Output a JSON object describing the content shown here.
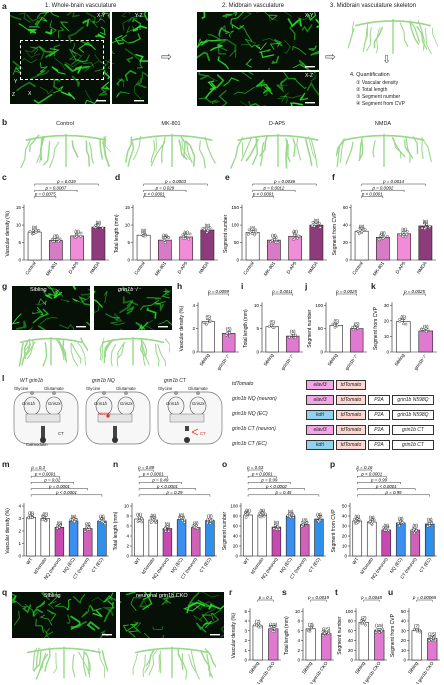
{
  "panel_letters": {
    "a": "a",
    "b": "b",
    "c": "c",
    "d": "d",
    "e": "e",
    "f": "f",
    "g": "g",
    "h": "h",
    "i": "i",
    "j": "j",
    "k": "k",
    "l": "l",
    "m": "m",
    "n": "n",
    "o": "o",
    "p": "p",
    "q": "q",
    "r": "r",
    "s": "s",
    "t": "t",
    "u": "u"
  },
  "panel_a": {
    "title1": "1. Whole-brain vasculature",
    "title2": "2. Midbrain vasculature",
    "title3": "3. Midbrain vasculature skeleton",
    "xy": "X-Y",
    "yz": "Y-Z",
    "xy2": "X-Y",
    "xz": "X-Z",
    "axis_y": "Y",
    "axis_x": "X",
    "axis_z": "Z",
    "quant_title": "4. Quantification",
    "quant_items": [
      "① Vascular density",
      "② Total length",
      "③ Segment number",
      "④ Segment from CVP"
    ]
  },
  "panel_b": {
    "labels": [
      "Control",
      "MK-801",
      "D-AP5",
      "NMDA"
    ]
  },
  "panel_g": {
    "labels": [
      "Sibling",
      "grin1b⁻/⁻"
    ]
  },
  "panel_l": {
    "cells": [
      {
        "title": "WT grin1b",
        "glycine": "Glycine",
        "glutamate": "Glutamate",
        "sub1": "Grin1b",
        "sub2": "Grin2x"
      },
      {
        "title": "grin1b NQ",
        "glycine": "Glycine",
        "glutamate": "Glutamate",
        "sub1": "Grin1b",
        "sub2": "Grin2x",
        "mark": "N598Q"
      },
      {
        "title": "grin1b CT",
        "glycine": "Glycine",
        "glutamate": "Glutamate",
        "sub1": "Grin1b",
        "sub2": "Grin2x",
        "mark": "CT"
      }
    ],
    "camk_label": "Calmodulin",
    "ct_label": "CT",
    "constructs": [
      {
        "name": "tdTomato",
        "promoter": "elavl3",
        "parts": [
          "tdTomato"
        ]
      },
      {
        "name": "grin1b NQ (neuron)",
        "promoter": "elavl3",
        "parts": [
          "tdTomato",
          "P2A",
          "grin1b N598Q"
        ]
      },
      {
        "name": "grin1b NQ (EC)",
        "promoter": "kdrl",
        "parts": [
          "tdTomato",
          "P2A",
          "grin1b N598Q"
        ]
      },
      {
        "name": "grin1b CT (neuron)",
        "promoter": "elavl3",
        "parts": [
          "tdTomato",
          "P2A",
          "grin1b CT"
        ]
      },
      {
        "name": "grin1b CT (EC)",
        "promoter": "kdrl",
        "parts": [
          "tdTomato",
          "P2A",
          "grin1b CT"
        ]
      }
    ]
  },
  "panel_q": {
    "labels": [
      "Sibling",
      "neuronal grin1b CKO"
    ]
  },
  "colors": {
    "control": "#ffffff",
    "mk801": "#d77bc6",
    "dap5": "#f08cd8",
    "nmda": "#8e3b7c",
    "sibling": "#ffffff",
    "mutant": "#e07ad0",
    "tdtomato": "#ffffff",
    "nq_neuron": "#c74ab0",
    "nq_ec": "#3b8ff0",
    "ct_neuron": "#d060b8",
    "ct_ec": "#2e90e8",
    "vessel": "#2ee62e",
    "skeleton": "#98d889",
    "promoter_pink": "#f3a5e6",
    "promoter_blue": "#8fd3ef",
    "red": "#d93024"
  },
  "chart_data": [
    {
      "id": "c",
      "type": "bar",
      "ylabel": "Vascular density (%)",
      "ylim": [
        0,
        15
      ],
      "yticks": [
        0,
        5,
        10,
        15
      ],
      "categories": [
        "Control",
        "MK-801",
        "D-AP5",
        "NMDA"
      ],
      "values": [
        8.0,
        5.6,
        6.9,
        9.4
      ],
      "n": [
        "(8)",
        "(8)",
        "(8)",
        "(8)"
      ],
      "colors": [
        "#ffffff",
        "#d77bc6",
        "#f08cd8",
        "#8e3b7c"
      ],
      "pvals": [
        "p = 0.019",
        "p = 0.0007",
        "p = 0.0075"
      ]
    },
    {
      "id": "d",
      "type": "bar",
      "ylabel": "Total length (mm)",
      "ylim": [
        0,
        15
      ],
      "yticks": [
        0,
        5,
        10,
        15
      ],
      "categories": [
        "Control",
        "MK-801",
        "D-AP5",
        "NMDA"
      ],
      "values": [
        7.1,
        5.7,
        6.6,
        8.6
      ],
      "n": [
        "(8)",
        "(8)",
        "(8)",
        "(8)"
      ],
      "colors": [
        "#ffffff",
        "#d77bc6",
        "#f08cd8",
        "#8e3b7c"
      ],
      "pvals": [
        "p = 0.0003",
        "p = 0.029",
        "p < 0.0001"
      ]
    },
    {
      "id": "e",
      "type": "bar",
      "ylabel": "Segment number",
      "ylim": [
        0,
        150
      ],
      "yticks": [
        0,
        50,
        100,
        150
      ],
      "categories": [
        "Control",
        "MK-801",
        "D-AP5",
        "NMDA"
      ],
      "values": [
        79,
        57,
        68,
        100
      ],
      "n": [
        "(8)",
        "(8)",
        "(8)",
        "(8)"
      ],
      "colors": [
        "#ffffff",
        "#d77bc6",
        "#f08cd8",
        "#8e3b7c"
      ],
      "pvals": [
        "p = 0.0036",
        "p = 0.0012",
        "p < 0.0001"
      ]
    },
    {
      "id": "f",
      "type": "bar",
      "ylabel": "Segment from CVP",
      "ylim": [
        0,
        60
      ],
      "yticks": [
        0,
        20,
        40,
        60
      ],
      "categories": [
        "Control",
        "MK-801",
        "D-AP5",
        "NMDA"
      ],
      "values": [
        33,
        26,
        30,
        39
      ],
      "n": [
        "(8)",
        "(8)",
        "(8)",
        "(8)"
      ],
      "colors": [
        "#ffffff",
        "#d77bc6",
        "#f08cd8",
        "#8e3b7c"
      ],
      "pvals": [
        "p = 0.0014",
        "p = 0.0092",
        "p < 0.0001"
      ]
    },
    {
      "id": "h",
      "type": "bar",
      "ylabel": "Vascular density (%)",
      "ylim": [
        0,
        4
      ],
      "yticks": [
        0,
        2,
        4
      ],
      "categories": [
        "Sibling",
        "grin1b⁻/⁻"
      ],
      "values": [
        2.6,
        1.6
      ],
      "n": [
        "(5)",
        "(5)"
      ],
      "colors": [
        "#ffffff",
        "#e07ad0"
      ],
      "pvals": [
        "p = 0.0099"
      ]
    },
    {
      "id": "i",
      "type": "bar",
      "ylabel": "Total length (mm)",
      "ylim": [
        0,
        10
      ],
      "yticks": [
        0,
        5,
        10
      ],
      "categories": [
        "Sibling",
        "grin1b⁻/⁻"
      ],
      "values": [
        5.4,
        3.4
      ],
      "n": [
        "(5)",
        "(5)"
      ],
      "colors": [
        "#ffffff",
        "#e07ad0"
      ],
      "pvals": [
        "p = 0.0011"
      ]
    },
    {
      "id": "j",
      "type": "bar",
      "ylabel": "Segment number",
      "ylim": [
        0,
        100
      ],
      "yticks": [
        0,
        50,
        100
      ],
      "categories": [
        "Sibling",
        "grin1b⁻/⁻"
      ],
      "values": [
        57,
        50
      ],
      "n": [
        "(5)",
        "(5)"
      ],
      "colors": [
        "#ffffff",
        "#e07ad0"
      ],
      "pvals": [
        "p = 0.0025"
      ]
    },
    {
      "id": "k",
      "type": "bar",
      "ylabel": "Segment from CVP",
      "ylim": [
        0,
        30
      ],
      "yticks": [
        0,
        10,
        20,
        30
      ],
      "categories": [
        "Sibling",
        "grin1b⁻/⁻"
      ],
      "values": [
        19.5,
        13.5
      ],
      "n": [
        "(5)",
        "(5)"
      ],
      "colors": [
        "#ffffff",
        "#e07ad0"
      ],
      "pvals": [
        "p = 0.0025"
      ]
    },
    {
      "id": "m",
      "type": "bar",
      "ylabel": "Vascular density (%)",
      "ylim": [
        0,
        4
      ],
      "yticks": [
        0,
        1,
        2,
        3,
        4
      ],
      "categories": [
        "WT",
        "tdTomato",
        "NQ (neuron)",
        "NQ (EC)",
        "CT (neuron)",
        "CT (EC)"
      ],
      "values": [
        3.1,
        3.0,
        2.3,
        2.8,
        2.2,
        2.8
      ],
      "n": [
        "(8)",
        "(8)",
        "(8)",
        "(8)",
        "(8)",
        "(8)"
      ],
      "colors": [
        "#ffffff",
        "#ffffff",
        "#c74ab0",
        "#3b8ff0",
        "#d060b8",
        "#2e90e8"
      ],
      "pvals": [
        "p = 0.3",
        "p < 0.0001",
        "p = 0.02",
        "p = 0.0001",
        "p < 0.0001"
      ]
    },
    {
      "id": "n",
      "type": "bar",
      "ylabel": "Total length (mm)",
      "ylim": [
        0,
        10
      ],
      "yticks": [
        0,
        2,
        4,
        6,
        8,
        10
      ],
      "categories": [
        "WT",
        "tdTomato",
        "NQ (neuron)",
        "NQ (EC)",
        "CT (neuron)",
        "CT (EC)"
      ],
      "values": [
        7.4,
        7.2,
        5.5,
        7.3,
        5.7,
        7.1
      ],
      "n": [
        "(8)",
        "(8)",
        "(8)",
        "(8)",
        "(8)",
        "(8)"
      ],
      "colors": [
        "#ffffff",
        "#ffffff",
        "#c74ab0",
        "#3b8ff0",
        "#d060b8",
        "#2e90e8"
      ],
      "pvals": [
        "p = 0.89",
        "p < 0.0001",
        "p = 0.49",
        "p < 0.0001",
        "p = 0.29"
      ]
    },
    {
      "id": "o",
      "type": "bar",
      "ylabel": "Segment number",
      "ylim": [
        0,
        100
      ],
      "yticks": [
        0,
        20,
        40,
        60,
        80,
        100
      ],
      "categories": [
        "WT",
        "tdTomato",
        "NQ (neuron)",
        "NQ (EC)",
        "CT (neuron)",
        "CT (EC)"
      ],
      "values": [
        82,
        82,
        58,
        80,
        63,
        74
      ],
      "n": [
        "(8)",
        "(8)",
        "(8)",
        "(8)",
        "(8)",
        "(8)"
      ],
      "colors": [
        "#ffffff",
        "#ffffff",
        "#c74ab0",
        "#3b8ff0",
        "#d060b8",
        "#2e90e8"
      ],
      "pvals": [
        "p = 0.53",
        "p < 0.0001",
        "p = 0.99",
        "p < 0.0002",
        "p = 0.45"
      ]
    },
    {
      "id": "p",
      "type": "bar",
      "ylabel": "Segment from CVP",
      "ylim": [
        0,
        50
      ],
      "yticks": [
        0,
        10,
        20,
        30,
        40,
        50
      ],
      "categories": [
        "WT",
        "tdTomato",
        "NQ (neuron)",
        "NQ (EC)",
        "CT (neuron)",
        "CT (EC)"
      ],
      "values": [
        35,
        34,
        26,
        33,
        26,
        32
      ],
      "n": [
        "(8)",
        "(8)",
        "(8)",
        "(8)",
        "(8)",
        "(8)"
      ],
      "colors": [
        "#ffffff",
        "#ffffff",
        "#c74ab0",
        "#3b8ff0",
        "#d060b8",
        "#2e90e8"
      ],
      "pvals": [
        "p = 0.16",
        "p < 0.0001",
        "p = 0.99",
        "p < 0.0001",
        "p = 0.99"
      ]
    },
    {
      "id": "r",
      "type": "bar",
      "ylabel": "Vascular density (%)",
      "ylim": [
        0,
        5
      ],
      "yticks": [
        0,
        1,
        2,
        3,
        4,
        5
      ],
      "categories": [
        "Sibling",
        "Neuronal grin1b CKO"
      ],
      "values": [
        3.5,
        3.2
      ],
      "n": [
        "(7)",
        "(15)"
      ],
      "colors": [
        "#ffffff",
        "#e07ad0"
      ],
      "pvals": [
        "p = 0.1"
      ]
    },
    {
      "id": "s",
      "type": "bar",
      "ylabel": "Total length (mm)",
      "ylim": [
        0,
        10
      ],
      "yticks": [
        0,
        2,
        4,
        6,
        8,
        10
      ],
      "categories": [
        "Sibling",
        "Neuronal grin1b CKO"
      ],
      "values": [
        6.4,
        5.4
      ],
      "n": [
        "(7)",
        "(15)"
      ],
      "colors": [
        "#ffffff",
        "#e07ad0"
      ],
      "pvals": [
        "p = 0.0019"
      ]
    },
    {
      "id": "t",
      "type": "bar",
      "ylabel": "Segment number",
      "ylim": [
        0,
        100
      ],
      "yticks": [
        0,
        20,
        40,
        60,
        80,
        100
      ],
      "categories": [
        "Sibling",
        "Neuronal grin1b CKO"
      ],
      "values": [
        77,
        61
      ],
      "n": [
        "(7)",
        "(15)"
      ],
      "colors": [
        "#ffffff",
        "#e07ad0"
      ],
      "pvals": [
        "p = 0.0048"
      ]
    },
    {
      "id": "u",
      "type": "bar",
      "ylabel": "Segment from CVP",
      "ylim": [
        0,
        50
      ],
      "yticks": [
        0,
        10,
        20,
        30,
        40,
        50
      ],
      "categories": [
        "Sibling",
        "Neuronal grin1b CKO"
      ],
      "values": [
        30,
        22
      ],
      "n": [
        "(7)",
        "(15)"
      ],
      "colors": [
        "#ffffff",
        "#e07ad0"
      ],
      "pvals": [
        "p = 0.00065"
      ]
    }
  ]
}
